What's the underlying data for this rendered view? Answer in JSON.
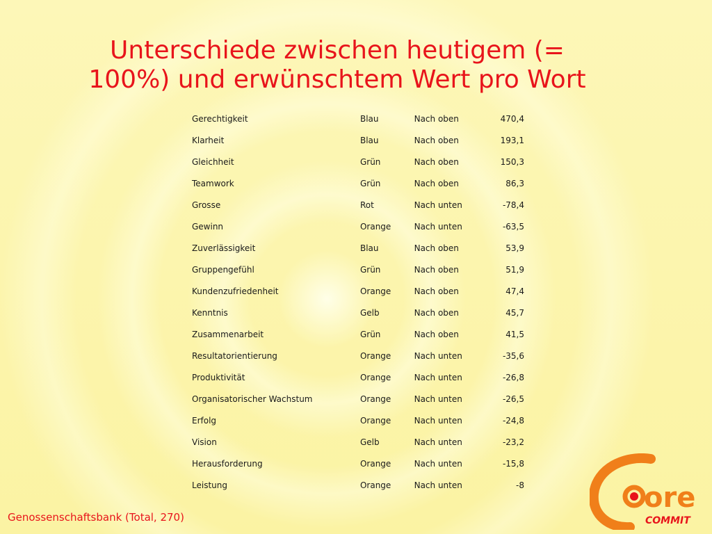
{
  "slide": {
    "title_line1": "Unterschiede zwischen heutigem (=",
    "title_line2": "100%) und erwünschtem Wert pro Wort",
    "footer": "Genossenschaftsbank (Total, 270)"
  },
  "table": {
    "rows": [
      {
        "word": "Gerechtigkeit",
        "color": "Blau",
        "direction": "Nach oben",
        "value": "470,4"
      },
      {
        "word": "Klarheit",
        "color": "Blau",
        "direction": "Nach oben",
        "value": "193,1"
      },
      {
        "word": "Gleichheit",
        "color": "Grün",
        "direction": "Nach oben",
        "value": "150,3"
      },
      {
        "word": "Teamwork",
        "color": "Grün",
        "direction": "Nach oben",
        "value": "86,3"
      },
      {
        "word": "Grosse",
        "color": "Rot",
        "direction": "Nach unten",
        "value": "-78,4"
      },
      {
        "word": "Gewinn",
        "color": "Orange",
        "direction": "Nach unten",
        "value": "-63,5"
      },
      {
        "word": "Zuverlässigkeit",
        "color": "Blau",
        "direction": "Nach oben",
        "value": "53,9"
      },
      {
        "word": "Gruppengefühl",
        "color": "Grün",
        "direction": "Nach oben",
        "value": "51,9"
      },
      {
        "word": "Kundenzufriedenheit",
        "color": "Orange",
        "direction": "Nach oben",
        "value": "47,4"
      },
      {
        "word": "Kenntnis",
        "color": "Gelb",
        "direction": "Nach oben",
        "value": "45,7"
      },
      {
        "word": "Zusammenarbeit",
        "color": "Grün",
        "direction": "Nach oben",
        "value": "41,5"
      },
      {
        "word": "Resultatorientierung",
        "color": "Orange",
        "direction": "Nach unten",
        "value": "-35,6"
      },
      {
        "word": "Produktivität",
        "color": "Orange",
        "direction": "Nach unten",
        "value": "-26,8"
      },
      {
        "word": "Organisatorischer Wachstum",
        "color": "Orange",
        "direction": "Nach unten",
        "value": "-26,5"
      },
      {
        "word": "Erfolg",
        "color": "Orange",
        "direction": "Nach unten",
        "value": "-24,8"
      },
      {
        "word": "Vision",
        "color": "Gelb",
        "direction": "Nach unten",
        "value": "-23,2"
      },
      {
        "word": "Herausforderung",
        "color": "Orange",
        "direction": "Nach unten",
        "value": "-15,8"
      },
      {
        "word": "Leistung",
        "color": "Orange",
        "direction": "Nach unten",
        "value": "-8"
      }
    ]
  },
  "logo": {
    "text_main": "ore",
    "text_sub": "COMMIT",
    "accent_color": "#f07f1a",
    "dot_color": "#e8141b"
  },
  "colors": {
    "title": "#e8141b",
    "background": "#fbf3a6"
  }
}
